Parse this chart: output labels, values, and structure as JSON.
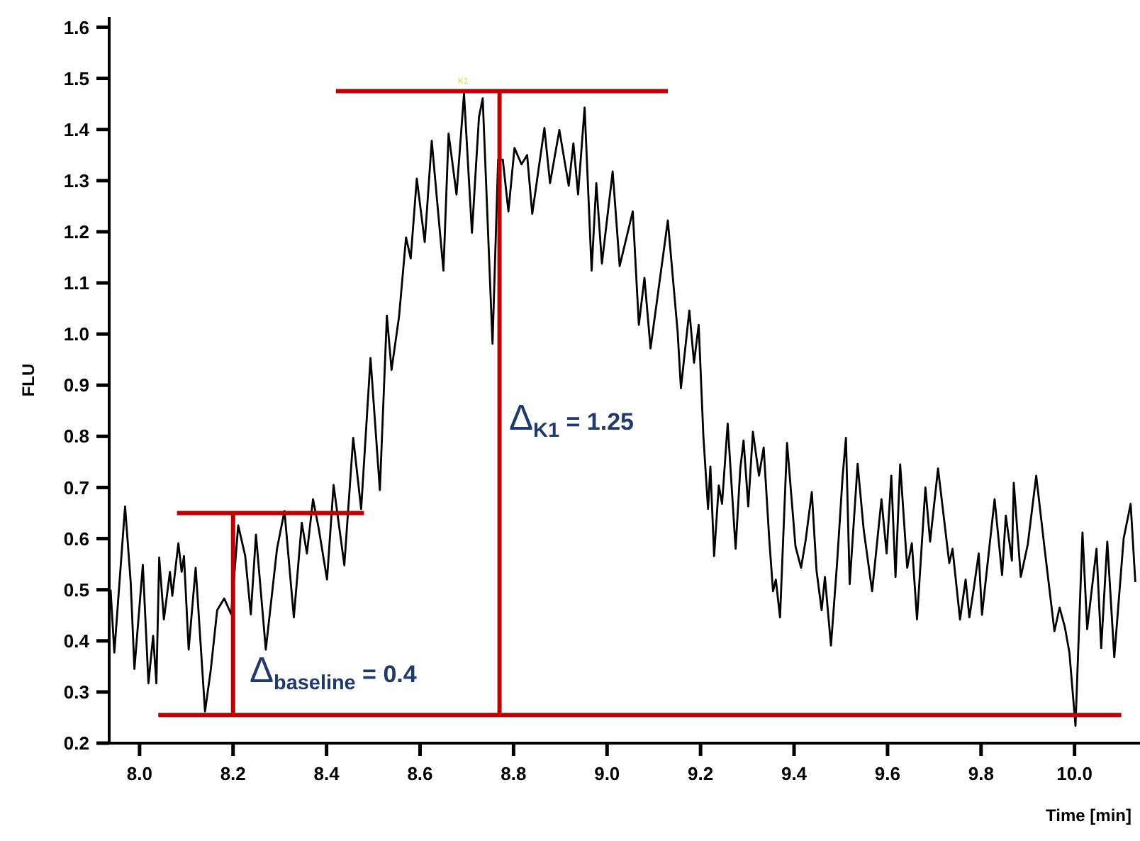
{
  "chart_data": {
    "type": "line",
    "xlabel": "Time [min]",
    "ylabel": "FLU",
    "xlim": [
      7.935,
      10.14
    ],
    "ylim": [
      0.2,
      1.62
    ],
    "xticks": [
      {
        "value": 8.0,
        "label": "8.0"
      },
      {
        "value": 8.2,
        "label": "8.2"
      },
      {
        "value": 8.4,
        "label": "8.4"
      },
      {
        "value": 8.6,
        "label": "8.6"
      },
      {
        "value": 8.8,
        "label": "8.8"
      },
      {
        "value": 9.0,
        "label": "9.0"
      },
      {
        "value": 9.2,
        "label": "9.2"
      },
      {
        "value": 9.4,
        "label": "9.4"
      },
      {
        "value": 9.6,
        "label": "9.6"
      },
      {
        "value": 9.8,
        "label": "9.8"
      },
      {
        "value": 10.0,
        "label": "10.0"
      }
    ],
    "yticks": [
      {
        "value": 0.2,
        "label": "0.2"
      },
      {
        "value": 0.3,
        "label": "0.3"
      },
      {
        "value": 0.4,
        "label": "0.4"
      },
      {
        "value": 0.5,
        "label": "0.5"
      },
      {
        "value": 0.6,
        "label": "0.6"
      },
      {
        "value": 0.7,
        "label": "0.7"
      },
      {
        "value": 0.8,
        "label": "0.8"
      },
      {
        "value": 0.9,
        "label": "0.9"
      },
      {
        "value": 1.0,
        "label": "1.0"
      },
      {
        "value": 1.1,
        "label": "1.1"
      },
      {
        "value": 1.2,
        "label": "1.2"
      },
      {
        "value": 1.3,
        "label": "1.3"
      },
      {
        "value": 1.4,
        "label": "1.4"
      },
      {
        "value": 1.5,
        "label": "1.5"
      },
      {
        "value": 1.6,
        "label": "1.6"
      }
    ],
    "grid": false,
    "marker": "none",
    "line_style": "solid",
    "series": [
      {
        "color": "#000000",
        "x": [
          7.938,
          7.946,
          7.969,
          7.981,
          7.989,
          8.007,
          8.019,
          8.029,
          8.036,
          8.042,
          8.052,
          8.065,
          8.07,
          8.083,
          8.09,
          8.095,
          8.105,
          8.12,
          8.14,
          8.152,
          8.166,
          8.181,
          8.196,
          8.211,
          8.226,
          8.238,
          8.249,
          8.27,
          8.294,
          8.31,
          8.33,
          8.347,
          8.358,
          8.371,
          8.383,
          8.401,
          8.415,
          8.438,
          8.457,
          8.474,
          8.494,
          8.514,
          8.529,
          8.539,
          8.555,
          8.57,
          8.58,
          8.593,
          8.61,
          8.625,
          8.638,
          8.65,
          8.661,
          8.678,
          8.694,
          8.711,
          8.726,
          8.734,
          8.755,
          8.767,
          8.777,
          8.789,
          8.802,
          8.817,
          8.829,
          8.84,
          8.866,
          8.878,
          8.898,
          8.918,
          8.928,
          8.938,
          8.952,
          8.967,
          8.977,
          8.989,
          9.012,
          9.027,
          9.055,
          9.068,
          9.08,
          9.093,
          9.13,
          9.151,
          9.158,
          9.176,
          9.186,
          9.196,
          9.206,
          9.216,
          9.221,
          9.229,
          9.239,
          9.246,
          9.258,
          9.275,
          9.285,
          9.292,
          9.302,
          9.312,
          9.325,
          9.335,
          9.347,
          9.355,
          9.361,
          9.37,
          9.385,
          9.403,
          9.415,
          9.425,
          9.438,
          9.448,
          9.459,
          9.466,
          9.479,
          9.492,
          9.504,
          9.511,
          9.519,
          9.536,
          9.549,
          9.567,
          9.587,
          9.598,
          9.608,
          9.617,
          9.627,
          9.642,
          9.652,
          9.663,
          9.681,
          9.691,
          9.708,
          9.732,
          9.739,
          9.755,
          9.767,
          9.775,
          9.785,
          9.795,
          9.802,
          9.829,
          9.845,
          9.853,
          9.866,
          9.87,
          9.885,
          9.9,
          9.918,
          9.936,
          9.957,
          9.968,
          9.979,
          9.989,
          10.002,
          10.017,
          10.027,
          10.047,
          10.057,
          10.07,
          10.085,
          10.105,
          10.12,
          10.13
        ],
        "values": [
          0.5,
          0.377,
          0.663,
          0.515,
          0.345,
          0.549,
          0.317,
          0.41,
          0.317,
          0.563,
          0.442,
          0.535,
          0.488,
          0.591,
          0.535,
          0.566,
          0.383,
          0.543,
          0.262,
          0.341,
          0.46,
          0.483,
          0.452,
          0.626,
          0.566,
          0.452,
          0.608,
          0.383,
          0.58,
          0.654,
          0.446,
          0.631,
          0.571,
          0.677,
          0.621,
          0.52,
          0.705,
          0.548,
          0.797,
          0.658,
          0.953,
          0.695,
          1.036,
          0.93,
          1.034,
          1.189,
          1.148,
          1.304,
          1.18,
          1.378,
          1.245,
          1.124,
          1.392,
          1.273,
          1.47,
          1.198,
          1.424,
          1.461,
          0.981,
          1.341,
          1.341,
          1.24,
          1.364,
          1.332,
          1.35,
          1.235,
          1.403,
          1.295,
          1.399,
          1.29,
          1.373,
          1.273,
          1.443,
          1.124,
          1.295,
          1.138,
          1.318,
          1.133,
          1.24,
          1.018,
          1.11,
          0.972,
          1.222,
          1.004,
          0.894,
          1.046,
          0.944,
          1.018,
          0.801,
          0.658,
          0.741,
          0.566,
          0.704,
          0.668,
          0.825,
          0.58,
          0.737,
          0.792,
          0.663,
          0.809,
          0.723,
          0.778,
          0.598,
          0.497,
          0.52,
          0.446,
          0.787,
          0.585,
          0.543,
          0.598,
          0.691,
          0.538,
          0.46,
          0.525,
          0.391,
          0.552,
          0.723,
          0.797,
          0.511,
          0.746,
          0.617,
          0.497,
          0.677,
          0.571,
          0.723,
          0.525,
          0.745,
          0.543,
          0.591,
          0.442,
          0.7,
          0.594,
          0.737,
          0.552,
          0.58,
          0.442,
          0.52,
          0.446,
          0.506,
          0.571,
          0.451,
          0.677,
          0.529,
          0.645,
          0.557,
          0.709,
          0.525,
          0.589,
          0.723,
          0.58,
          0.419,
          0.465,
          0.428,
          0.377,
          0.234,
          0.612,
          0.423,
          0.58,
          0.386,
          0.594,
          0.368,
          0.6,
          0.668,
          0.515
        ]
      },
      {
        "color": "#c00000",
        "x": [
          8.04,
          10.1
        ],
        "values": [
          0.255,
          0.255
        ]
      },
      {
        "color": "#c00000",
        "x": [
          8.08,
          8.48
        ],
        "values": [
          0.65,
          0.65
        ]
      },
      {
        "color": "#c00000",
        "x": [
          8.2,
          8.2
        ],
        "values": [
          0.255,
          0.65
        ]
      },
      {
        "color": "#c00000",
        "x": [
          8.42,
          9.13
        ],
        "values": [
          1.475,
          1.475
        ]
      },
      {
        "color": "#c00000",
        "x": [
          8.77,
          8.77
        ],
        "values": [
          0.255,
          1.475
        ]
      }
    ],
    "annotations": [
      "Δ$_{baseline}$ = 0.4",
      "Δ$_{K1}$ = 1.25",
      {
        "text": "K1",
        "x": 8.69,
        "y": 1.49
      }
    ]
  }
}
